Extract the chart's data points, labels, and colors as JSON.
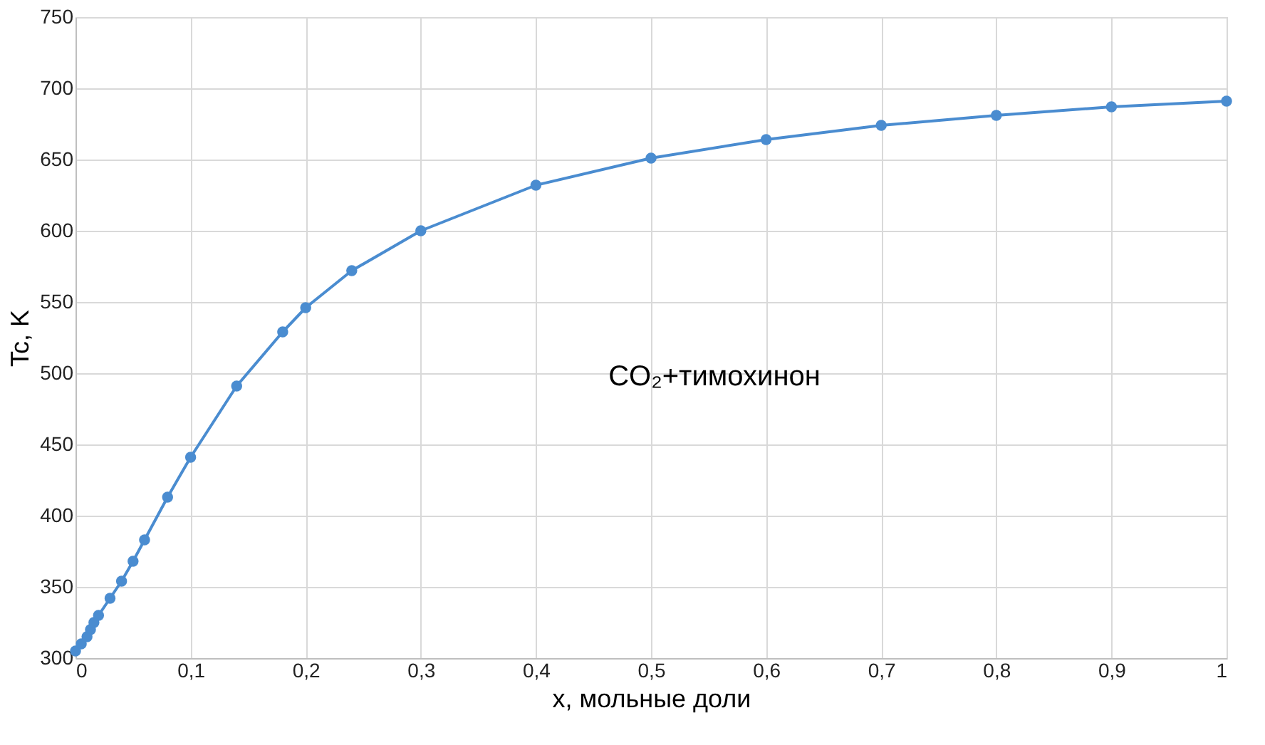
{
  "chart_data": {
    "type": "line",
    "xlabel": "x, мольные доли",
    "ylabel": "Tc, K",
    "annotations": [
      "CO₂+тимохинон"
    ],
    "series": [
      {
        "color": "#4a8cd0",
        "x": [
          0,
          0.005,
          0.01,
          0.013,
          0.016,
          0.02,
          0.03,
          0.04,
          0.05,
          0.06,
          0.08,
          0.1,
          0.14,
          0.18,
          0.2,
          0.24,
          0.3,
          0.4,
          0.5,
          0.6,
          0.7,
          0.8,
          0.9,
          1.0
        ],
        "values": [
          305,
          310,
          315,
          320,
          325,
          330,
          342,
          354,
          368,
          383,
          413,
          441,
          491,
          529,
          546,
          572,
          600,
          632,
          651,
          664,
          674,
          681,
          687,
          691
        ]
      }
    ],
    "xlim": [
      0,
      1
    ],
    "xticks": [
      0,
      {
        "value": 0.1,
        "label": "0,1"
      },
      {
        "value": 0.2,
        "label": "0,2"
      },
      {
        "value": 0.3,
        "label": "0,3"
      },
      {
        "value": 0.4,
        "label": "0,4"
      },
      {
        "value": 0.5,
        "label": "0,5"
      },
      {
        "value": 0.6,
        "label": "0,6"
      },
      {
        "value": 0.7,
        "label": "0,7"
      },
      {
        "value": 0.8,
        "label": "0,8"
      },
      {
        "value": 0.9,
        "label": "0,9"
      },
      1
    ],
    "ylim": [
      300,
      750
    ],
    "yticks": [
      300,
      350,
      400,
      450,
      500,
      550,
      600,
      650,
      700,
      750
    ],
    "grid": true,
    "marker": "circle",
    "line_style": "solid"
  }
}
